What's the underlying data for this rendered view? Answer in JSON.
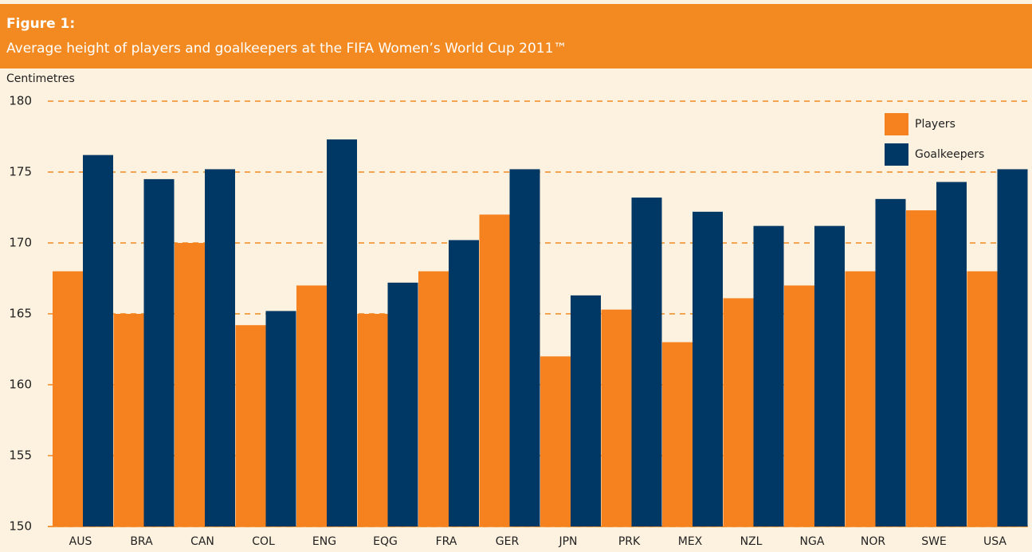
{
  "chart_data": {
    "type": "bar",
    "title": "Figure 1:",
    "subtitle": "Average height of players and goalkeepers at the FIFA Women’s World Cup 2011™",
    "y_label": "Centimetres",
    "categories": [
      "AUS",
      "BRA",
      "CAN",
      "COL",
      "ENG",
      "EQG",
      "FRA",
      "GER",
      "JPN",
      "PRK",
      "MEX",
      "NZL",
      "NGA",
      "NOR",
      "SWE",
      "USA"
    ],
    "series": [
      {
        "name": "Players",
        "color": "#f5821f",
        "values": [
          168,
          165,
          170,
          164.2,
          167,
          165,
          168,
          172,
          162,
          165.3,
          163,
          166.1,
          167,
          168,
          172.3,
          168
        ]
      },
      {
        "name": "Goalkeepers",
        "color": "#003865",
        "values": [
          176.2,
          174.5,
          175.2,
          165.2,
          177.3,
          167.2,
          170.2,
          175.2,
          166.3,
          173.2,
          172.2,
          171.2,
          171.2,
          173.1,
          174.3,
          175.2
        ]
      }
    ],
    "ylim": [
      150,
      180
    ],
    "yticks": [
      150,
      155,
      160,
      165,
      170,
      175,
      180
    ],
    "grid": true,
    "legend": "upper right"
  }
}
